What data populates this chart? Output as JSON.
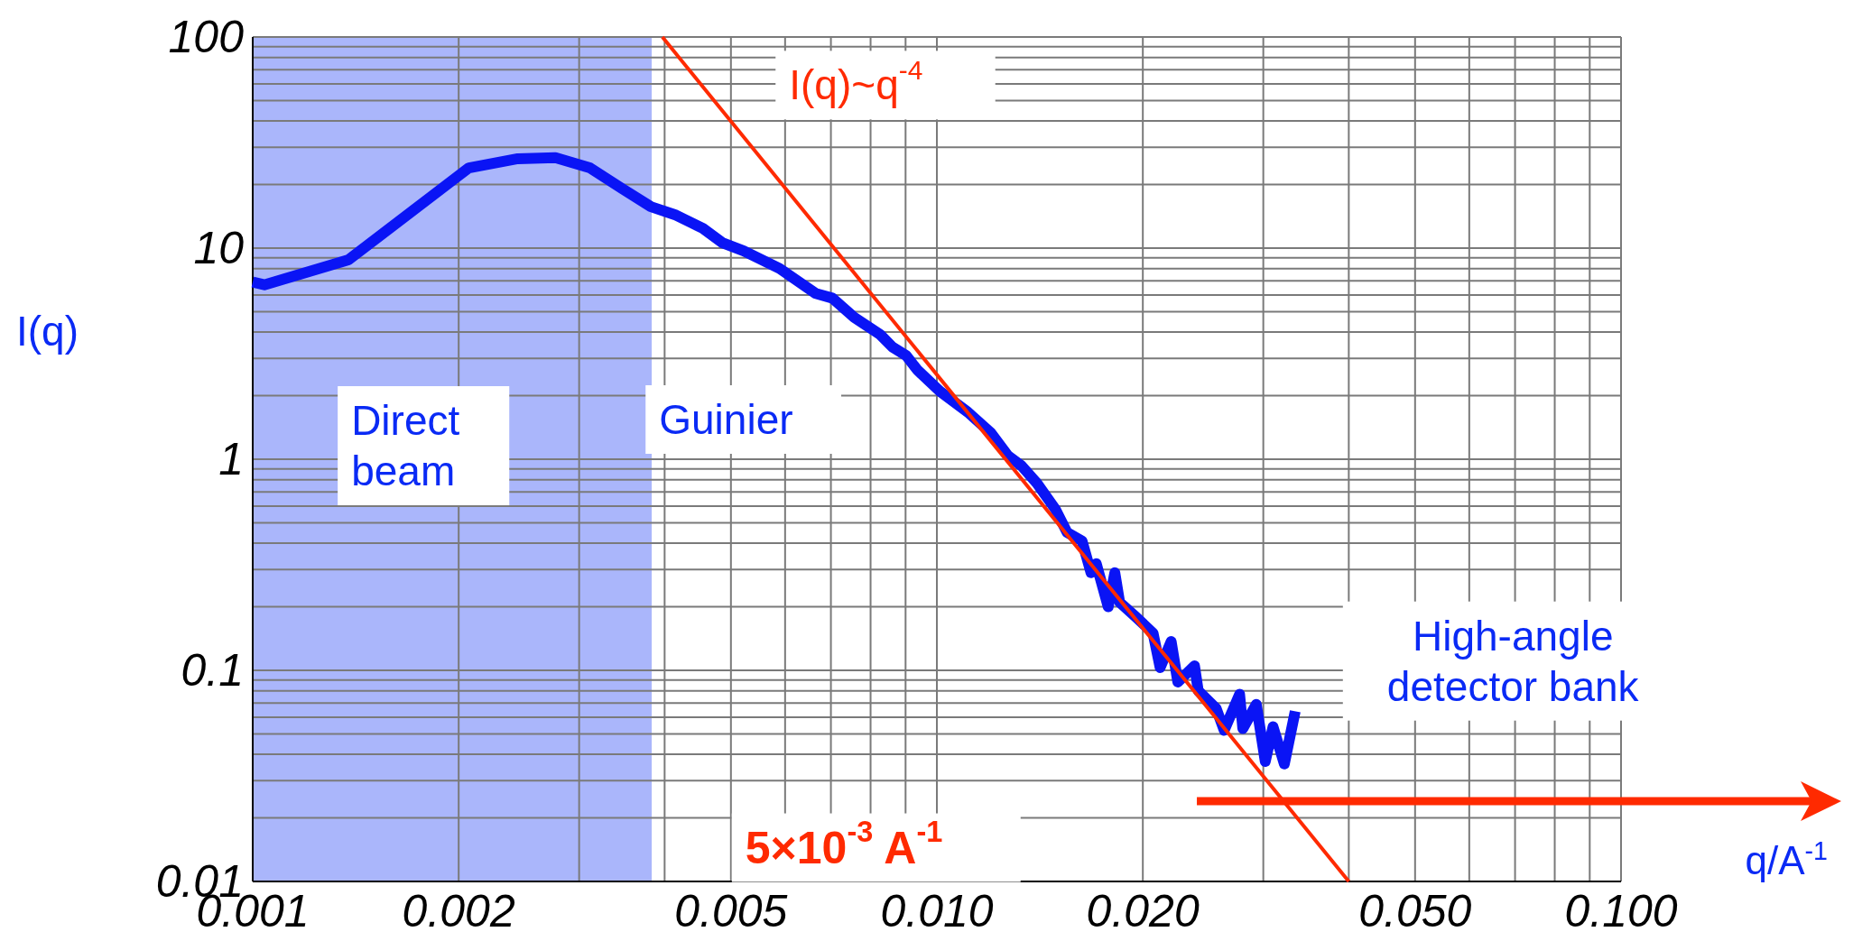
{
  "chart_data": {
    "type": "line",
    "log": "xy",
    "grid": true,
    "marker": "none",
    "line_style": "solid",
    "xlabel": "q/A$^{-1}$",
    "ylabel": "I(q)",
    "xlim": [
      0.001,
      0.1
    ],
    "ylim": [
      0.01,
      100
    ],
    "xticks": [
      {
        "value": 0.001,
        "label": "0.001"
      },
      {
        "value": 0.002,
        "label": "0.002"
      },
      {
        "value": 0.005,
        "label": "0.005"
      },
      {
        "value": 0.01,
        "label": "0.010"
      },
      {
        "value": 0.02,
        "label": "0.020"
      },
      {
        "value": 0.05,
        "label": "0.050"
      },
      {
        "value": 0.1,
        "label": "0.100"
      }
    ],
    "yticks": [
      0.01,
      0.1,
      1,
      10,
      100
    ],
    "series": [
      {
        "color": "#0a14f5",
        "x": [
          0.001,
          0.00104,
          0.00138,
          0.00207,
          0.00244,
          0.00277,
          0.00311,
          0.00347,
          0.00382,
          0.00414,
          0.00455,
          0.00486,
          0.00522,
          0.00589,
          0.00665,
          0.00703,
          0.00757,
          0.00826,
          0.00861,
          0.00902,
          0.00936,
          0.0101,
          0.0111,
          0.012,
          0.0127,
          0.0133,
          0.014,
          0.0149,
          0.0155,
          0.0163,
          0.0168,
          0.0171,
          0.0178,
          0.0182,
          0.0185,
          0.0195,
          0.0207,
          0.0212,
          0.022,
          0.0225,
          0.0238,
          0.0241,
          0.0256,
          0.0263,
          0.0277,
          0.028,
          0.0293,
          0.0302,
          0.031,
          0.0322,
          0.0334
        ],
        "values": [
          6.9,
          6.7,
          8.8,
          24,
          26.5,
          26.8,
          24,
          19.1,
          15.7,
          14.4,
          12.4,
          10.6,
          9.7,
          8.0,
          6.1,
          5.8,
          4.7,
          3.9,
          3.4,
          3.1,
          2.65,
          2.1,
          1.67,
          1.33,
          1.04,
          0.93,
          0.77,
          0.58,
          0.45,
          0.41,
          0.29,
          0.32,
          0.2,
          0.29,
          0.21,
          0.18,
          0.15,
          0.103,
          0.137,
          0.088,
          0.105,
          0.08,
          0.066,
          0.052,
          0.077,
          0.053,
          0.069,
          0.037,
          0.054,
          0.036,
          0.064
        ]
      },
      {
        "type": "line",
        "color": "#ff2a00",
        "x": [
          0.00397,
          0.04
        ],
        "values": [
          100,
          0.01
        ]
      }
    ],
    "bands": [
      {
        "axis": "x",
        "from": 0.001,
        "to": 0.00383,
        "color": "#aab6fb"
      }
    ],
    "annotations": [
      "I(q)~q$^{-4}$",
      "Direct\nbeam",
      "Guinier",
      "High-angle\ndetector bank",
      "5×10$^{-3}$ A$^{-1}$"
    ]
  }
}
